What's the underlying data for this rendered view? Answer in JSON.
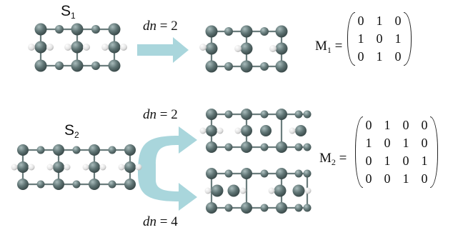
{
  "labels": {
    "s1_base": "S",
    "s1_sub": "1",
    "s2_base": "S",
    "s2_sub": "2",
    "dn_italic": "dn",
    "dn_eq_2": " = 2",
    "dn_eq_4": " = 4",
    "m1_base": "M",
    "m1_sub": "1",
    "m2_base": "M",
    "m2_sub": "2",
    "eq": " ="
  },
  "matrices": {
    "M1": [
      [
        "0",
        "1",
        "0"
      ],
      [
        "1",
        "0",
        "1"
      ],
      [
        "0",
        "1",
        "0"
      ]
    ],
    "M2": [
      [
        "0",
        "1",
        "0",
        "0"
      ],
      [
        "1",
        "0",
        "1",
        "0"
      ],
      [
        "0",
        "1",
        "0",
        "1"
      ],
      [
        "0",
        "0",
        "1",
        "0"
      ]
    ]
  },
  "colors": {
    "atom_large": "#5f7474",
    "atom_small": "#6f8484",
    "hydrogen": "#e8e8e8",
    "bond": "#6b7d7d",
    "arrow": "#a9d6dc",
    "text": "#111111"
  }
}
